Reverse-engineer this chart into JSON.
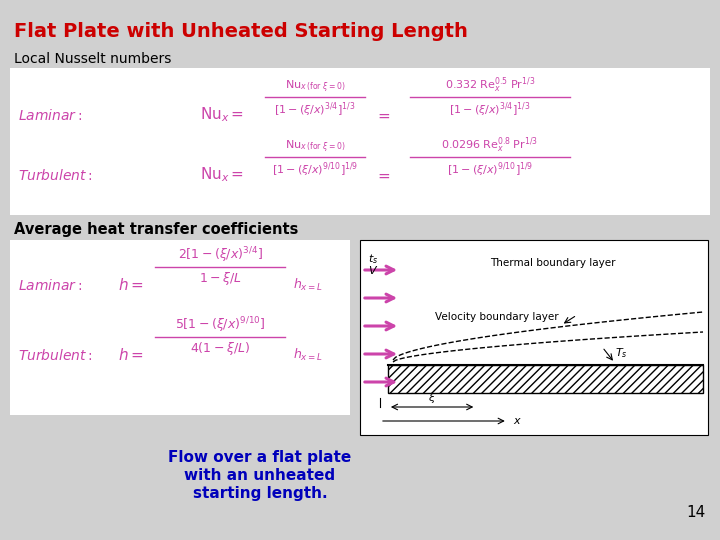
{
  "title": "Flat Plate with Unheated Starting Length",
  "title_color": "#CC0000",
  "title_fontsize": 14,
  "bg_color": "#D0D0D0",
  "section1_label": "Local Nusselt numbers",
  "section2_label": "Average heat transfer coefficients",
  "caption_line1": "Flow over a flat plate",
  "caption_line2": "with an unheated",
  "caption_line3": "starting length.",
  "caption_color": "#0000BB",
  "caption_fontsize": 11,
  "page_number": "14",
  "formula_color": "#CC44AA",
  "arrow_color": "#CC44AA",
  "diagram_line_color": "#333333"
}
